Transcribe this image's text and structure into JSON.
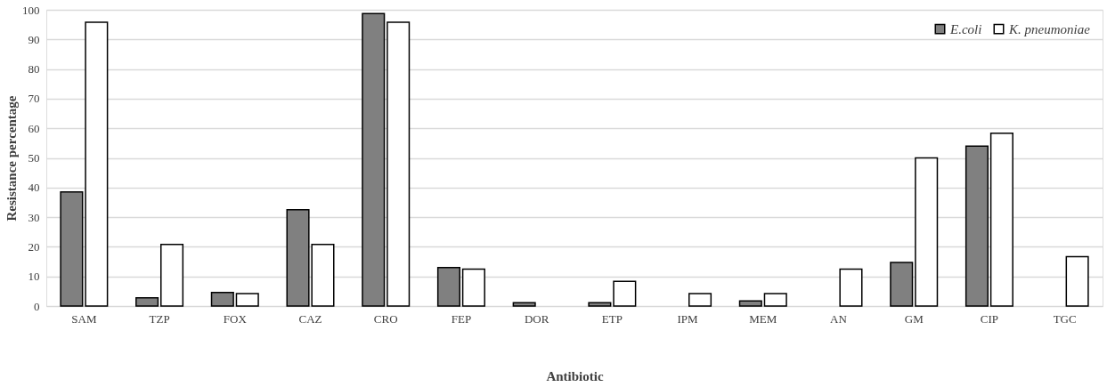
{
  "chart_data": {
    "type": "bar",
    "xlabel": "Antibiotic",
    "ylabel": "Resistance percentage",
    "categories": [
      "SAM",
      "TZP",
      "FOX",
      "CAZ",
      "CRO",
      "FEP",
      "DOR",
      "ETP",
      "IPM",
      "MEM",
      "AN",
      "GM",
      "CIP",
      "TGC"
    ],
    "series": [
      {
        "name": "E.coli",
        "color": "#808080",
        "values": [
          38.5,
          2.8,
          4.6,
          32.5,
          98.7,
          13,
          1.1,
          1.1,
          null,
          1.7,
          null,
          14.7,
          54,
          null
        ]
      },
      {
        "name": "K. pneumoniae",
        "color": "#ffffff",
        "values": [
          95.8,
          20.8,
          4.2,
          20.8,
          95.8,
          12.5,
          null,
          8.3,
          4.2,
          4.2,
          12.5,
          50,
          58.3,
          16.7
        ]
      }
    ],
    "ylim": [
      0,
      100
    ],
    "yticks": [
      0,
      10,
      20,
      30,
      40,
      50,
      60,
      70,
      80,
      90,
      100
    ],
    "grid": "y",
    "legend": "top right"
  }
}
